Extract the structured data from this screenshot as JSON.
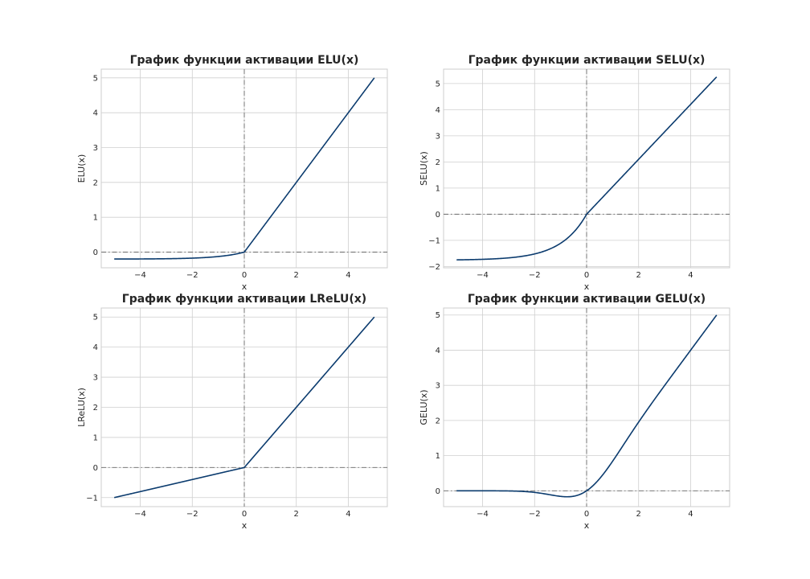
{
  "chart_data": [
    {
      "type": "line",
      "func": "elu",
      "title": "График функции активации ELU(x)",
      "xlabel": "x",
      "ylabel": "ELU(x)",
      "xlim": [
        -5.5,
        5.5
      ],
      "ylim": [
        -0.45,
        5.25
      ],
      "xticks": [
        -4,
        -2,
        0,
        2,
        4
      ],
      "yticks": [
        0,
        1,
        2,
        3,
        4,
        5
      ],
      "tick_labels_x": [
        "−4",
        "−2",
        "0",
        "2",
        "4"
      ],
      "tick_labels_y": [
        "0",
        "1",
        "2",
        "3",
        "4",
        "5"
      ],
      "x_range": [
        -5,
        5
      ],
      "grid": true,
      "line_color": "#0b3b6e"
    },
    {
      "type": "line",
      "func": "selu",
      "title": "График функции активации SELU(x)",
      "xlabel": "x",
      "ylabel": "SELU(x)",
      "xlim": [
        -5.5,
        5.5
      ],
      "ylim": [
        -2.05,
        5.55
      ],
      "xticks": [
        -4,
        -2,
        0,
        2,
        4
      ],
      "yticks": [
        -2,
        -1,
        0,
        1,
        2,
        3,
        4,
        5
      ],
      "tick_labels_x": [
        "−4",
        "−2",
        "0",
        "2",
        "4"
      ],
      "tick_labels_y": [
        "−2",
        "−1",
        "0",
        "1",
        "2",
        "3",
        "4",
        "5"
      ],
      "x_range": [
        -5,
        5
      ],
      "grid": true,
      "line_color": "#0b3b6e"
    },
    {
      "type": "line",
      "func": "lrelu",
      "title": "График функции активации LReLU(x)",
      "xlabel": "x",
      "ylabel": "LReLU(x)",
      "xlim": [
        -5.5,
        5.5
      ],
      "ylim": [
        -1.3,
        5.3
      ],
      "xticks": [
        -4,
        -2,
        0,
        2,
        4
      ],
      "yticks": [
        -1,
        0,
        1,
        2,
        3,
        4,
        5
      ],
      "tick_labels_x": [
        "−4",
        "−2",
        "0",
        "2",
        "4"
      ],
      "tick_labels_y": [
        "−1",
        "0",
        "1",
        "2",
        "3",
        "4",
        "5"
      ],
      "x_range": [
        -5,
        5
      ],
      "grid": true,
      "line_color": "#0b3b6e"
    },
    {
      "type": "line",
      "func": "gelu",
      "title": "График функции активации GELU(x)",
      "xlabel": "x",
      "ylabel": "GELU(x)",
      "xlim": [
        -5.5,
        5.5
      ],
      "ylim": [
        -0.45,
        5.2
      ],
      "xticks": [
        -4,
        -2,
        0,
        2,
        4
      ],
      "yticks": [
        0,
        1,
        2,
        3,
        4,
        5
      ],
      "tick_labels_x": [
        "−4",
        "−2",
        "0",
        "2",
        "4"
      ],
      "tick_labels_y": [
        "0",
        "1",
        "2",
        "3",
        "4",
        "5"
      ],
      "x_range": [
        -5,
        5
      ],
      "grid": true,
      "line_color": "#0b3b6e"
    }
  ]
}
